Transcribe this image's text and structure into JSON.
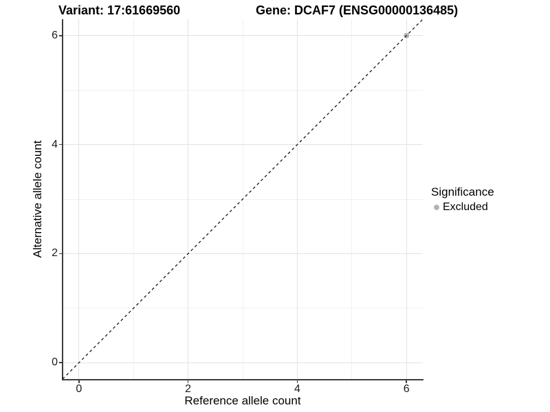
{
  "chart_data": {
    "type": "scatter",
    "titles": {
      "left": "Variant: 17:61669560",
      "right": "Gene: DCAF7 (ENSG00000136485)"
    },
    "xlabel": "Reference allele count",
    "ylabel": "Alternative allele count",
    "xlim": [
      -0.3,
      6.3
    ],
    "ylim": [
      -0.3,
      6.3
    ],
    "x_ticks": [
      0,
      2,
      4,
      6
    ],
    "y_ticks": [
      0,
      2,
      4,
      6
    ],
    "x_minor_ticks": [
      1,
      3,
      5
    ],
    "y_minor_ticks": [
      1,
      3,
      5
    ],
    "grid": "major+minor",
    "series": [
      {
        "name": "Excluded",
        "color": "#b4b4b4",
        "points": [
          {
            "x": 6,
            "y": 6
          }
        ]
      }
    ],
    "reference_line": {
      "kind": "identity",
      "slope": 1,
      "intercept": 0,
      "style": "dashed",
      "color": "#000000"
    },
    "legend": {
      "title": "Significance",
      "position": "right",
      "entries": [
        {
          "label": "Excluded",
          "color": "#b4b4b4"
        }
      ]
    }
  },
  "colors": {
    "background": "#ffffff",
    "grid_major": "#e2e2e2",
    "grid_minor": "#f0f0f0",
    "axis_line": "#3c3c3c",
    "tick_text": "#1a1a1a",
    "excluded_point": "#b4b4b4"
  }
}
